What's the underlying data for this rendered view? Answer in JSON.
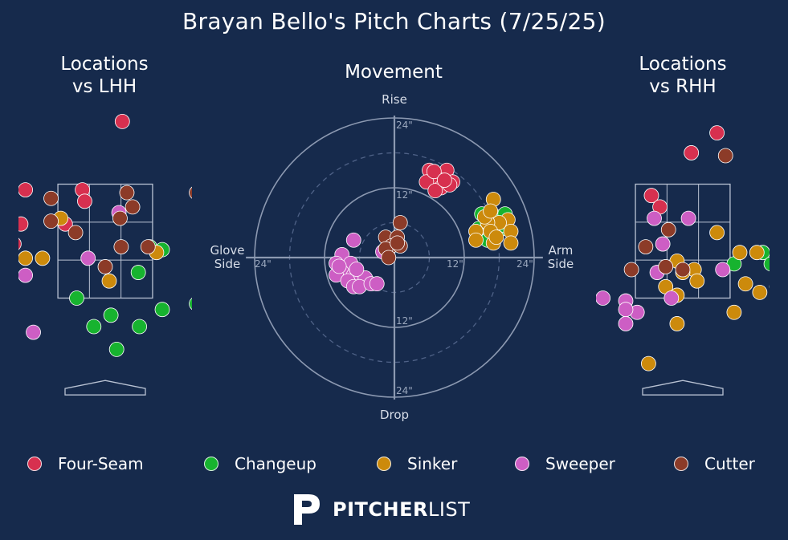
{
  "title": "Brayan Bello's Pitch Charts (7/25/25)",
  "panels": {
    "lhh_title_line1": "Locations",
    "lhh_title_line2": "vs LHH",
    "movement_title": "Movement",
    "rhh_title_line1": "Locations",
    "rhh_title_line2": "vs RHH"
  },
  "movement_axes": {
    "top": "Rise",
    "bottom": "Drop",
    "left_line1": "Glove",
    "left_line2": "Side",
    "right_line1": "Arm",
    "right_line2": "Side",
    "tick_24_top": "24\"",
    "tick_12_top": "12\"",
    "tick_12_bottom": "12\"",
    "tick_24_bottom": "24\"",
    "tick_24_left": "24\"",
    "tick_12_right": "12\"",
    "tick_24_right": "24\""
  },
  "colors": {
    "background": "#162a4c",
    "Four-Seam": "#d7304f",
    "Changeup": "#17b32f",
    "Sinker": "#cc8a0c",
    "Sweeper": "#cd5ec4",
    "Cutter": "#8c3b28"
  },
  "legend": [
    {
      "name": "Four-Seam",
      "color": "#d7304f"
    },
    {
      "name": "Changeup",
      "color": "#17b32f"
    },
    {
      "name": "Sinker",
      "color": "#cc8a0c"
    },
    {
      "name": "Sweeper",
      "color": "#cd5ec4"
    },
    {
      "name": "Cutter",
      "color": "#8c3b28"
    }
  ],
  "brand": {
    "part1": "PITCHER",
    "part2": "LIST"
  },
  "chart_data": [
    {
      "type": "scatter",
      "title": "Locations vs LHH",
      "xlim": [
        -2.2,
        2.2
      ],
      "ylim": [
        -0.4,
        5.2
      ],
      "strike_zone": {
        "x": [
          -0.83,
          0.83
        ],
        "y": [
          1.5,
          3.5
        ]
      },
      "series": [
        {
          "name": "Four-Seam",
          "points": [
            [
              0.3,
              4.6
            ],
            [
              -1.4,
              3.4
            ],
            [
              -0.4,
              3.4
            ],
            [
              -0.36,
              3.2
            ],
            [
              -1.48,
              2.8
            ],
            [
              -1.9,
              2.6
            ],
            [
              -1.6,
              2.45
            ],
            [
              -0.7,
              2.8
            ],
            [
              1.8,
              2.6
            ]
          ]
        },
        {
          "name": "Changeup",
          "points": [
            [
              0.78,
              2.4
            ],
            [
              1.0,
              2.35
            ],
            [
              1.75,
              2.6
            ],
            [
              0.58,
              1.95
            ],
            [
              -0.5,
              1.5
            ],
            [
              1.0,
              1.3
            ],
            [
              0.1,
              1.2
            ],
            [
              0.6,
              1.0
            ],
            [
              -0.2,
              1.0
            ],
            [
              0.2,
              0.6
            ],
            [
              1.6,
              1.4
            ]
          ]
        },
        {
          "name": "Sinker",
          "points": [
            [
              -1.4,
              2.2
            ],
            [
              -1.1,
              2.2
            ],
            [
              -1.72,
              2.0
            ],
            [
              0.9,
              2.3
            ],
            [
              0.07,
              1.8
            ],
            [
              -0.78,
              2.9
            ]
          ]
        },
        {
          "name": "Sweeper",
          "points": [
            [
              0.24,
              3.0
            ],
            [
              -1.8,
              2.2
            ],
            [
              -1.4,
              1.9
            ],
            [
              -0.3,
              2.2
            ],
            [
              2.0,
              2.4
            ],
            [
              -1.26,
              0.9
            ]
          ]
        },
        {
          "name": "Cutter",
          "points": [
            [
              -0.95,
              3.25
            ],
            [
              0.38,
              3.35
            ],
            [
              0.48,
              3.1
            ],
            [
              -0.52,
              2.65
            ],
            [
              1.6,
              3.35
            ],
            [
              1.9,
              3.5
            ],
            [
              0.26,
              2.9
            ],
            [
              0.75,
              2.4
            ],
            [
              0.28,
              2.4
            ],
            [
              0.0,
              2.05
            ],
            [
              -2.15,
              1.85
            ],
            [
              -0.95,
              2.85
            ]
          ]
        }
      ]
    },
    {
      "type": "scatter",
      "title": "Movement",
      "xlabel": "Glove Side / Arm Side",
      "ylabel": "Drop / Rise",
      "xlim": [
        -24,
        24
      ],
      "ylim": [
        -24,
        24
      ],
      "units": "inches",
      "series": [
        {
          "name": "Four-Seam",
          "points": [
            [
              6,
              15
            ],
            [
              9,
              15
            ],
            [
              7.5,
              13.5
            ],
            [
              10,
              13
            ],
            [
              5.5,
              13
            ],
            [
              8,
              12
            ],
            [
              7,
              11.5
            ],
            [
              9.5,
              12.5
            ],
            [
              6.8,
              14.8
            ],
            [
              8.6,
              13.3
            ]
          ]
        },
        {
          "name": "Changeup",
          "points": [
            [
              15,
              7.5
            ],
            [
              17.5,
              7
            ],
            [
              19,
              7.5
            ],
            [
              16,
              6
            ],
            [
              18.5,
              5
            ],
            [
              14.5,
              5
            ],
            [
              16.5,
              4.5
            ],
            [
              15.5,
              4
            ],
            [
              19,
              5.5
            ],
            [
              17,
              5.5
            ],
            [
              14.5,
              3.5
            ],
            [
              16,
              3
            ]
          ]
        },
        {
          "name": "Sinker",
          "points": [
            [
              17,
              10
            ],
            [
              19.5,
              6.5
            ],
            [
              20,
              4.5
            ],
            [
              17,
              2.5
            ],
            [
              14,
              4.5
            ],
            [
              18,
              6
            ],
            [
              16,
              6
            ],
            [
              15.5,
              7
            ],
            [
              14,
              3
            ],
            [
              16.5,
              4.5
            ],
            [
              20,
              2.5
            ],
            [
              17.5,
              3.5
            ],
            [
              16.5,
              8
            ]
          ]
        },
        {
          "name": "Sweeper",
          "points": [
            [
              -7,
              3
            ],
            [
              -9,
              0.5
            ],
            [
              -7.5,
              -1
            ],
            [
              -10,
              -1
            ],
            [
              -9,
              -2.5
            ],
            [
              -10,
              -3
            ],
            [
              -7,
              -3
            ],
            [
              -6,
              -3.5
            ],
            [
              -8,
              -4
            ],
            [
              -5,
              -3.5
            ],
            [
              -7,
              -5
            ],
            [
              -6,
              -5
            ],
            [
              -4,
              -4.5
            ],
            [
              -3,
              -4.5
            ],
            [
              -6.5,
              -2
            ],
            [
              -2,
              1
            ],
            [
              -9.5,
              -1.5
            ]
          ]
        },
        {
          "name": "Cutter",
          "points": [
            [
              1,
              6
            ],
            [
              -1.5,
              3.5
            ],
            [
              0.5,
              3.5
            ],
            [
              -0.5,
              2
            ],
            [
              1,
              2
            ],
            [
              -1.5,
              1.5
            ],
            [
              0.5,
              2.5
            ],
            [
              -1,
              0
            ]
          ]
        }
      ]
    },
    {
      "type": "scatter",
      "title": "Locations vs RHH",
      "xlim": [
        -2.2,
        2.2
      ],
      "ylim": [
        -0.4,
        5.2
      ],
      "strike_zone": {
        "x": [
          -0.83,
          0.83
        ],
        "y": [
          1.5,
          3.5
        ]
      },
      "series": [
        {
          "name": "Four-Seam",
          "points": [
            [
              0.6,
              4.4
            ],
            [
              0.15,
              4.05
            ],
            [
              -0.55,
              3.3
            ],
            [
              -0.4,
              3.1
            ],
            [
              2.2,
              4.2
            ]
          ]
        },
        {
          "name": "Changeup",
          "points": [
            [
              0.9,
              2.1
            ],
            [
              1.4,
              2.3
            ],
            [
              1.55,
              2.1
            ]
          ]
        },
        {
          "name": "Sinker",
          "points": [
            [
              0.6,
              2.65
            ],
            [
              1.0,
              2.3
            ],
            [
              1.3,
              2.3
            ],
            [
              -0.1,
              2.15
            ],
            [
              0.2,
              2.0
            ],
            [
              0.0,
              1.95
            ],
            [
              0.25,
              1.8
            ],
            [
              -0.3,
              1.7
            ],
            [
              -0.1,
              1.55
            ],
            [
              1.1,
              1.75
            ],
            [
              1.35,
              1.6
            ],
            [
              0.9,
              1.25
            ],
            [
              1.65,
              1.7
            ],
            [
              -0.6,
              0.35
            ],
            [
              -0.1,
              1.05
            ]
          ]
        },
        {
          "name": "Sweeper",
          "points": [
            [
              -0.5,
              2.9
            ],
            [
              0.1,
              2.9
            ],
            [
              -0.35,
              2.45
            ],
            [
              0.7,
              2.0
            ],
            [
              -1.4,
              1.5
            ],
            [
              -1.0,
              1.45
            ],
            [
              -0.8,
              1.25
            ],
            [
              -1.0,
              1.3
            ],
            [
              -0.2,
              1.5
            ],
            [
              -1.0,
              1.05
            ],
            [
              -2.0,
              1.05
            ],
            [
              -1.9,
              0.95
            ],
            [
              -0.45,
              1.95
            ],
            [
              1.75,
              2.75
            ],
            [
              1.9,
              1.95
            ]
          ]
        },
        {
          "name": "Cutter",
          "points": [
            [
              0.75,
              4.0
            ],
            [
              -0.65,
              2.4
            ],
            [
              -0.9,
              2.0
            ],
            [
              -0.25,
              2.7
            ],
            [
              -0.3,
              2.05
            ],
            [
              0.0,
              2.0
            ]
          ]
        }
      ]
    }
  ]
}
